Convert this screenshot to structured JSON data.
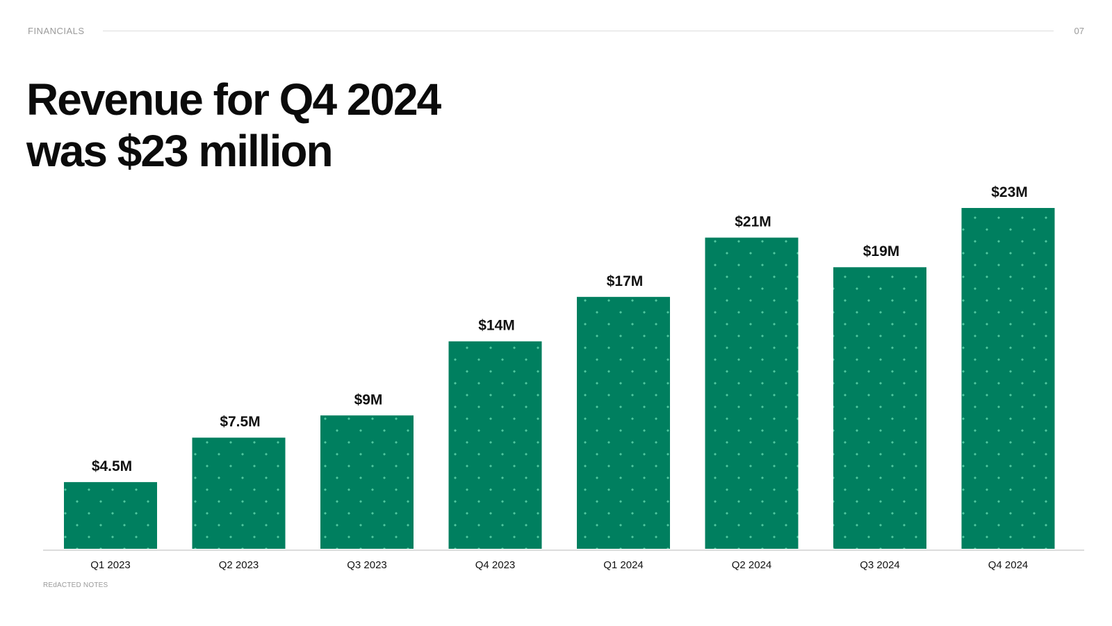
{
  "header": {
    "section": "FINANCIALS",
    "page_number": "07"
  },
  "headline": {
    "line1": "Revenue for Q4 2024",
    "line2": "was $23 million"
  },
  "footnote": "REdACTED NOTES",
  "colors": {
    "bar": "#007f5f",
    "bar_dot": "#4fc79f",
    "axis": "#d0d0d0"
  },
  "chart_data": {
    "type": "bar",
    "categories": [
      "Q1 2023",
      "Q2 2023",
      "Q3 2023",
      "Q4 2023",
      "Q1 2024",
      "Q2 2024",
      "Q3 2024",
      "Q4 2024"
    ],
    "values": [
      4.5,
      7.5,
      9,
      14,
      17,
      21,
      19,
      23
    ],
    "data_labels": [
      "$4.5M",
      "$7.5M",
      "$9M",
      "$14M",
      "$17M",
      "$21M",
      "$19M",
      "$23M"
    ],
    "title": "Revenue for Q4 2024 was $23 million",
    "xlabel": "",
    "ylabel": "",
    "ylim": [
      0,
      23
    ],
    "grid": false,
    "legend": "none"
  }
}
